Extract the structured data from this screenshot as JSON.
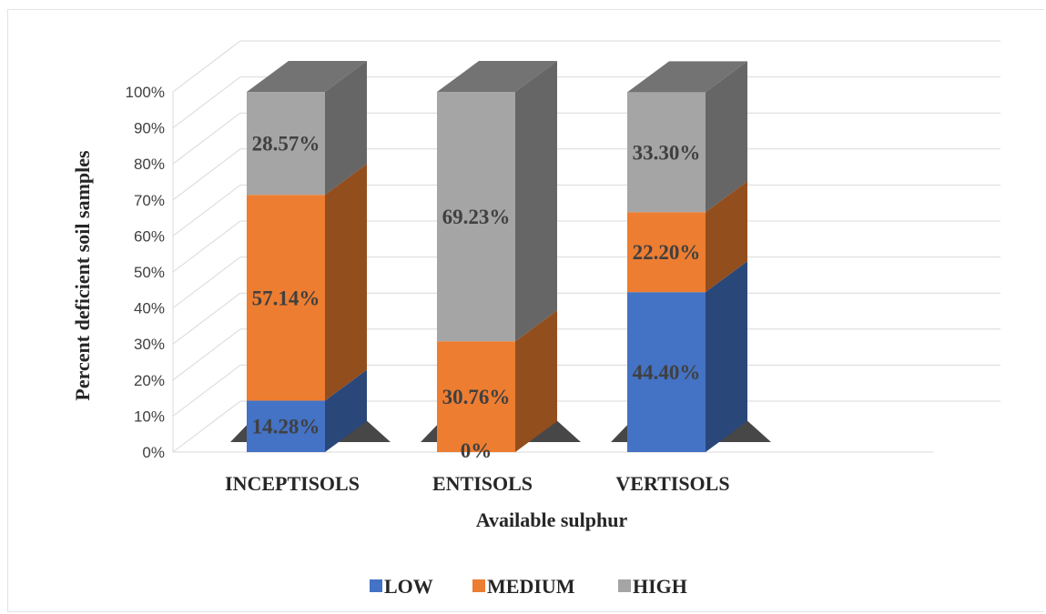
{
  "chart_data": {
    "type": "bar",
    "stacked": true,
    "three_d": true,
    "title": "",
    "xlabel": "Available sulphur",
    "ylabel": "Percent deficient soil samples",
    "ylim": [
      0,
      100
    ],
    "y_ticks": [
      "0%",
      "10%",
      "20%",
      "30%",
      "40%",
      "50%",
      "60%",
      "70%",
      "80%",
      "90%",
      "100%"
    ],
    "categories": [
      "INCEPTISOLS",
      "ENTISOLS",
      "VERTISOLS"
    ],
    "series": [
      {
        "name": "LOW",
        "color": "#4472C4",
        "values": [
          14.28,
          0,
          44.4
        ],
        "labels": [
          "14.28%",
          "0%",
          "44.40%"
        ]
      },
      {
        "name": "MEDIUM",
        "color": "#ED7D31",
        "values": [
          57.14,
          30.76,
          22.2
        ],
        "labels": [
          "57.14%",
          "30.76%",
          "22.20%"
        ]
      },
      {
        "name": "HIGH",
        "color": "#A5A5A5",
        "values": [
          28.57,
          69.23,
          33.3
        ],
        "labels": [
          "28.57%",
          "69.23%",
          "33.30%"
        ]
      }
    ],
    "grid": true,
    "legend_position": "bottom"
  }
}
